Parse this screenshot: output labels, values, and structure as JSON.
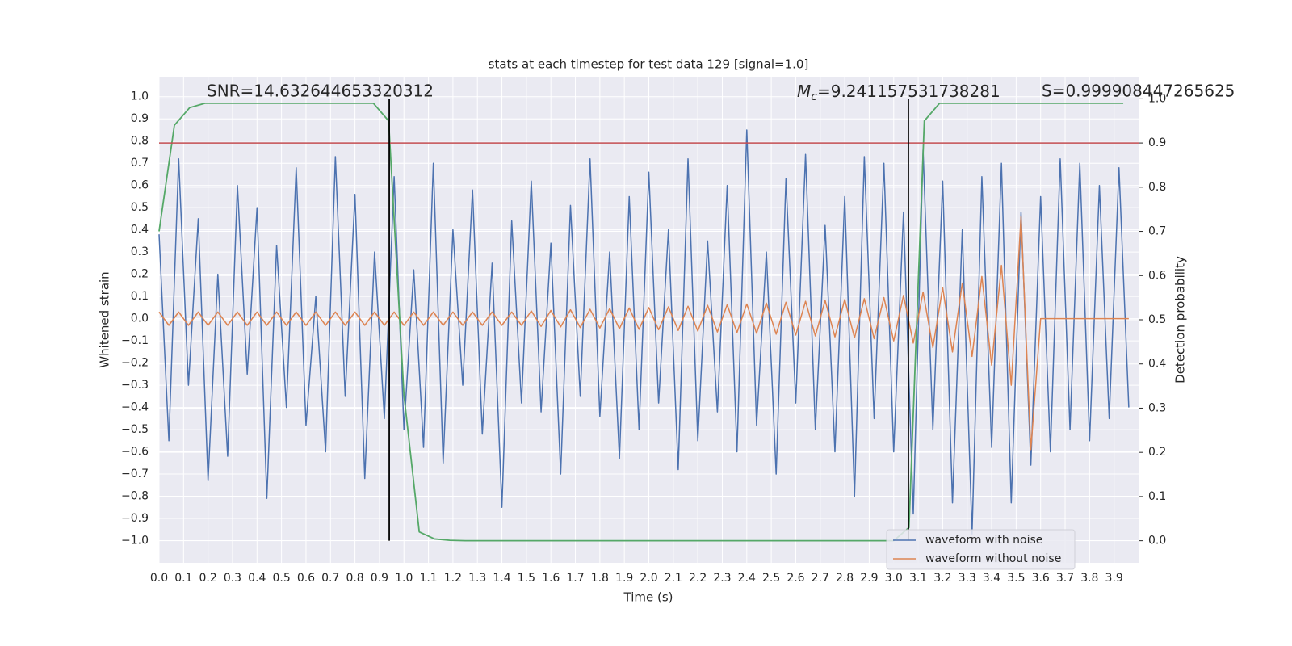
{
  "chart_data": {
    "type": "line",
    "title": "stats at each timestep for test data 129 [signal=1.0]",
    "x_label": "Time (s)",
    "y_label": "Whitened strain",
    "y2_label": "Detection probability",
    "annotations": {
      "snr": "SNR=14.632644653320312",
      "mc_symbol": "M",
      "mc_subscript": "c",
      "mc_value": "=9.241157531738281",
      "s": "S=0.999908447265625"
    },
    "x": [
      0,
      0.04,
      0.08,
      0.12,
      0.16,
      0.2,
      0.24,
      0.28,
      0.32,
      0.36,
      0.4,
      0.44,
      0.48,
      0.52,
      0.56,
      0.6,
      0.64,
      0.68,
      0.72,
      0.76,
      0.8,
      0.84,
      0.88,
      0.92,
      0.96,
      1.0,
      1.04,
      1.08,
      1.12,
      1.16,
      1.2,
      1.24,
      1.28,
      1.32,
      1.36,
      1.4,
      1.44,
      1.48,
      1.52,
      1.56,
      1.6,
      1.64,
      1.68,
      1.72,
      1.76,
      1.8,
      1.84,
      1.88,
      1.92,
      1.96,
      2.0,
      2.04,
      2.08,
      2.12,
      2.16,
      2.2,
      2.24,
      2.28,
      2.32,
      2.36,
      2.4,
      2.44,
      2.48,
      2.52,
      2.56,
      2.6,
      2.64,
      2.68,
      2.72,
      2.76,
      2.8,
      2.84,
      2.88,
      2.92,
      2.96,
      3.0,
      3.04,
      3.08,
      3.12,
      3.16,
      3.2,
      3.24,
      3.28,
      3.32,
      3.36,
      3.4,
      3.44,
      3.48,
      3.52,
      3.56,
      3.6,
      3.64,
      3.68,
      3.72,
      3.76,
      3.8,
      3.84,
      3.88,
      3.92,
      3.96
    ],
    "series": [
      {
        "name": "waveform with noise",
        "color": "#4c72b0",
        "values": [
          0.38,
          -0.55,
          0.72,
          -0.3,
          0.45,
          -0.73,
          0.2,
          -0.62,
          0.6,
          -0.25,
          0.5,
          -0.81,
          0.33,
          -0.4,
          0.68,
          -0.48,
          0.1,
          -0.6,
          0.73,
          -0.35,
          0.56,
          -0.72,
          0.3,
          -0.45,
          0.64,
          -0.5,
          0.22,
          -0.58,
          0.7,
          -0.65,
          0.4,
          -0.3,
          0.58,
          -0.52,
          0.25,
          -0.85,
          0.44,
          -0.38,
          0.62,
          -0.42,
          0.34,
          -0.7,
          0.51,
          -0.35,
          0.72,
          -0.44,
          0.3,
          -0.63,
          0.55,
          -0.5,
          0.66,
          -0.38,
          0.4,
          -0.68,
          0.72,
          -0.55,
          0.35,
          -0.42,
          0.6,
          -0.6,
          0.85,
          -0.48,
          0.3,
          -0.7,
          0.63,
          -0.38,
          0.74,
          -0.5,
          0.42,
          -0.6,
          0.55,
          -0.8,
          0.73,
          -0.45,
          0.7,
          -0.6,
          0.48,
          -0.88,
          0.76,
          -0.5,
          0.62,
          -0.83,
          0.4,
          -0.97,
          0.64,
          -0.58,
          0.7,
          -0.83,
          0.48,
          -0.66,
          0.55,
          -0.6,
          0.72,
          -0.5,
          0.7,
          -0.55,
          0.6,
          -0.45,
          0.68,
          -0.4
        ]
      },
      {
        "name": "waveform without noise",
        "color": "#dd8452",
        "values": [
          0.03,
          -0.03,
          0.03,
          -0.03,
          0.03,
          -0.03,
          0.03,
          -0.03,
          0.03,
          -0.03,
          0.03,
          -0.03,
          0.03,
          -0.03,
          0.03,
          -0.03,
          0.03,
          -0.03,
          0.03,
          -0.03,
          0.03,
          -0.03,
          0.03,
          -0.03,
          0.03,
          -0.03,
          0.03,
          -0.03,
          0.03,
          -0.03,
          0.03,
          -0.03,
          0.03,
          -0.03,
          0.03,
          -0.03,
          0.03,
          -0.03,
          0.035,
          -0.035,
          0.037,
          -0.037,
          0.04,
          -0.04,
          0.042,
          -0.042,
          0.045,
          -0.045,
          0.048,
          -0.048,
          0.05,
          -0.05,
          0.053,
          -0.053,
          0.056,
          -0.056,
          0.06,
          -0.06,
          0.063,
          -0.063,
          0.066,
          -0.066,
          0.07,
          -0.07,
          0.074,
          -0.074,
          0.078,
          -0.078,
          0.082,
          -0.082,
          0.086,
          -0.086,
          0.09,
          -0.09,
          0.095,
          -0.1,
          0.105,
          -0.11,
          0.12,
          -0.13,
          0.14,
          -0.15,
          0.16,
          -0.17,
          0.19,
          -0.21,
          0.24,
          -0.3,
          0.46,
          -0.59,
          0,
          0,
          0,
          0,
          0,
          0,
          0,
          0,
          0,
          0
        ]
      }
    ],
    "detection_probability": {
      "axis": "y2",
      "color": "#55a868",
      "x": [
        0,
        0.0625,
        0.125,
        0.1875,
        0.25,
        0.875,
        0.9375,
        1.0,
        1.0625,
        1.125,
        1.1875,
        1.25,
        3.0,
        3.0625,
        3.125,
        3.1875,
        3.25,
        3.9375
      ],
      "values": [
        0.7,
        0.94,
        0.98,
        0.99,
        0.99,
        0.99,
        0.95,
        0.33,
        0.02,
        0.004,
        0.001,
        0.0,
        0.0,
        0.03,
        0.95,
        0.99,
        0.99,
        0.99
      ]
    },
    "threshold": {
      "axis": "y2",
      "value": 0.9,
      "color": "#c44e52"
    },
    "vlines": {
      "axis": "y2",
      "x": [
        0.94,
        3.06
      ],
      "from": 0,
      "to": 1,
      "color": "#000000"
    },
    "xlim": [
      0,
      4.0
    ],
    "ylim": [
      -1.1,
      1.09
    ],
    "y2lim": [
      -0.05,
      1.05
    ],
    "xticks": [
      {
        "value": 0,
        "label": "0.0"
      },
      {
        "value": 0.1,
        "label": "0.1"
      },
      {
        "value": 0.2,
        "label": "0.2"
      },
      {
        "value": 0.3,
        "label": "0.3"
      },
      {
        "value": 0.4,
        "label": "0.4"
      },
      {
        "value": 0.5,
        "label": "0.5"
      },
      {
        "value": 0.6,
        "label": "0.6"
      },
      {
        "value": 0.7,
        "label": "0.7"
      },
      {
        "value": 0.8,
        "label": "0.8"
      },
      {
        "value": 0.9,
        "label": "0.9"
      },
      {
        "value": 1,
        "label": "1.0"
      },
      {
        "value": 1.1,
        "label": "1.1"
      },
      {
        "value": 1.2,
        "label": "1.2"
      },
      {
        "value": 1.3,
        "label": "1.3"
      },
      {
        "value": 1.4,
        "label": "1.4"
      },
      {
        "value": 1.5,
        "label": "1.5"
      },
      {
        "value": 1.6,
        "label": "1.6"
      },
      {
        "value": 1.7,
        "label": "1.7"
      },
      {
        "value": 1.8,
        "label": "1.8"
      },
      {
        "value": 1.9,
        "label": "1.9"
      },
      {
        "value": 2,
        "label": "2.0"
      },
      {
        "value": 2.1,
        "label": "2.1"
      },
      {
        "value": 2.2,
        "label": "2.2"
      },
      {
        "value": 2.3,
        "label": "2.3"
      },
      {
        "value": 2.4,
        "label": "2.4"
      },
      {
        "value": 2.5,
        "label": "2.5"
      },
      {
        "value": 2.6,
        "label": "2.6"
      },
      {
        "value": 2.7,
        "label": "2.7"
      },
      {
        "value": 2.8,
        "label": "2.8"
      },
      {
        "value": 2.9,
        "label": "2.9"
      },
      {
        "value": 3,
        "label": "3.0"
      },
      {
        "value": 3.1,
        "label": "3.1"
      },
      {
        "value": 3.2,
        "label": "3.2"
      },
      {
        "value": 3.3,
        "label": "3.3"
      },
      {
        "value": 3.4,
        "label": "3.4"
      },
      {
        "value": 3.5,
        "label": "3.5"
      },
      {
        "value": 3.6,
        "label": "3.6"
      },
      {
        "value": 3.7,
        "label": "3.7"
      },
      {
        "value": 3.8,
        "label": "3.8"
      },
      {
        "value": 3.9,
        "label": "3.9"
      }
    ],
    "yticks": [
      {
        "value": -1,
        "label": "−1.0"
      },
      {
        "value": -0.9,
        "label": "−0.9"
      },
      {
        "value": -0.8,
        "label": "−0.8"
      },
      {
        "value": -0.7,
        "label": "−0.7"
      },
      {
        "value": -0.6,
        "label": "−0.6"
      },
      {
        "value": -0.5,
        "label": "−0.5"
      },
      {
        "value": -0.4,
        "label": "−0.4"
      },
      {
        "value": -0.3,
        "label": "−0.3"
      },
      {
        "value": -0.2,
        "label": "−0.2"
      },
      {
        "value": -0.1,
        "label": "−0.1"
      },
      {
        "value": 0,
        "label": "0.0"
      },
      {
        "value": 0.1,
        "label": "0.1"
      },
      {
        "value": 0.2,
        "label": "0.2"
      },
      {
        "value": 0.3,
        "label": "0.3"
      },
      {
        "value": 0.4,
        "label": "0.4"
      },
      {
        "value": 0.5,
        "label": "0.5"
      },
      {
        "value": 0.6,
        "label": "0.6"
      },
      {
        "value": 0.7,
        "label": "0.7"
      },
      {
        "value": 0.8,
        "label": "0.8"
      },
      {
        "value": 0.9,
        "label": "0.9"
      },
      {
        "value": 1,
        "label": "1.0"
      }
    ],
    "y2ticks": [
      {
        "value": 0,
        "label": "0.0"
      },
      {
        "value": 0.1,
        "label": "0.1"
      },
      {
        "value": 0.2,
        "label": "0.2"
      },
      {
        "value": 0.3,
        "label": "0.3"
      },
      {
        "value": 0.4,
        "label": "0.4"
      },
      {
        "value": 0.5,
        "label": "0.5"
      },
      {
        "value": 0.6,
        "label": "0.6"
      },
      {
        "value": 0.7,
        "label": "0.7"
      },
      {
        "value": 0.8,
        "label": "0.8"
      },
      {
        "value": 0.9,
        "label": "0.9"
      },
      {
        "value": 1,
        "label": "1.0"
      }
    ],
    "grid": true,
    "legend": "lower right"
  }
}
